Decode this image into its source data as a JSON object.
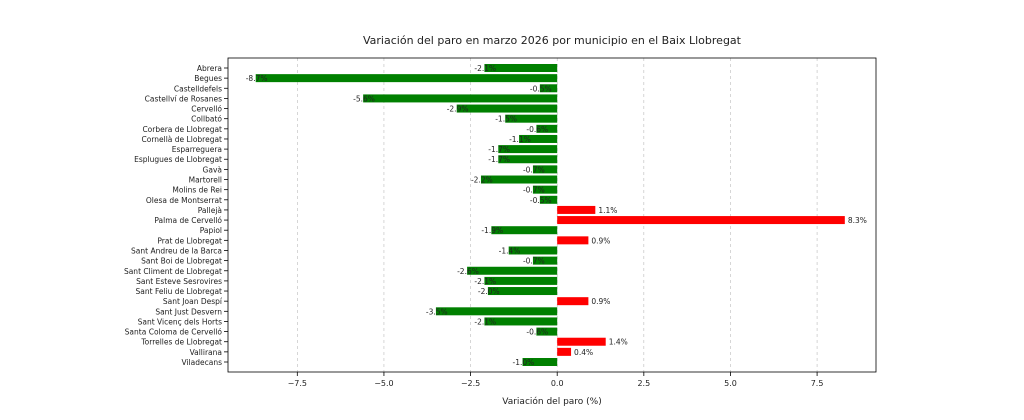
{
  "chart_data": {
    "type": "bar",
    "orientation": "horizontal",
    "title": "Variación del paro en marzo 2026 por municipio en el Baix Llobregat",
    "xlabel": "Variación del paro (%)",
    "ylabel": "",
    "xlim": [
      -9.5,
      9.2
    ],
    "xticks": [
      -7.5,
      -5.0,
      -2.5,
      0.0,
      2.5,
      5.0,
      7.5
    ],
    "xtick_labels": [
      "−7.5",
      "−5.0",
      "−2.5",
      "0.0",
      "2.5",
      "5.0",
      "7.5"
    ],
    "grid": "x-dashed",
    "colors": {
      "negative": "#008000",
      "positive": "#ff0000"
    },
    "categories": [
      "Abrera",
      "Begues",
      "Castelldefels",
      "Castellví de Rosanes",
      "Cervelló",
      "Collbató",
      "Corbera de Llobregat",
      "Cornellà de Llobregat",
      "Esparreguera",
      "Esplugues de Llobregat",
      "Gavà",
      "Martorell",
      "Molins de Rei",
      "Olesa de Montserrat",
      "Pallejà",
      "Palma de Cervelló",
      "Papiol",
      "Prat de Llobregat",
      "Sant Andreu de la Barca",
      "Sant Boi de Llobregat",
      "Sant Climent de Llobregat",
      "Sant Esteve Sesrovires",
      "Sant Feliu de Llobregat",
      "Sant Joan Despí",
      "Sant Just Desvern",
      "Sant Vicenç dels Horts",
      "Santa Coloma de Cervelló",
      "Torrelles de Llobregat",
      "Vallirana",
      "Viladecans"
    ],
    "values": [
      -2.1,
      -8.7,
      -0.5,
      -5.6,
      -2.9,
      -1.5,
      -0.6,
      -1.1,
      -1.7,
      -1.7,
      -0.7,
      -2.2,
      -0.7,
      -0.5,
      1.1,
      8.3,
      -1.9,
      0.9,
      -1.4,
      -0.7,
      -2.6,
      -2.1,
      -2.0,
      0.9,
      -3.5,
      -2.1,
      -0.6,
      1.4,
      0.4,
      -1.0
    ],
    "value_labels": [
      "-2.1%",
      "-8.7%",
      "-0.5%",
      "-5.6%",
      "-2.9%",
      "-1.5%",
      "-0.6%",
      "-1.1%",
      "-1.7%",
      "-1.7%",
      "-0.7%",
      "-2.2%",
      "-0.7%",
      "-0.5%",
      "1.1%",
      "8.3%",
      "-1.9%",
      "0.9%",
      "-1.4%",
      "-0.7%",
      "-2.6%",
      "-2.1%",
      "-2.0%",
      "0.9%",
      "-3.5%",
      "-2.1%",
      "-0.6%",
      "1.4%",
      "0.4%",
      "-1.0%"
    ]
  }
}
